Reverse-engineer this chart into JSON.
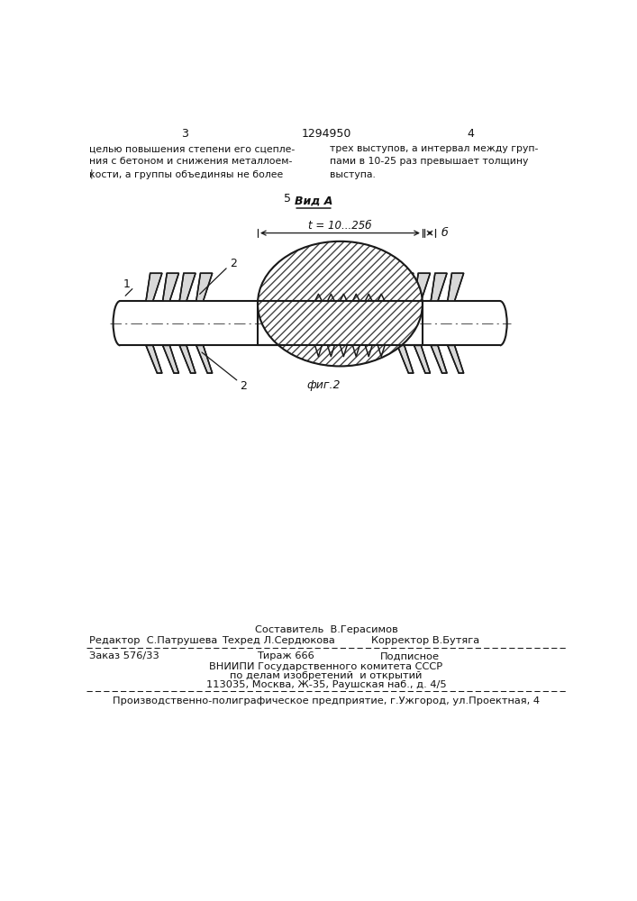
{
  "bg_color": "#ffffff",
  "line_color": "#1a1a1a",
  "page_num_left": "3",
  "page_num_center": "1294950",
  "page_num_right": "4",
  "text_left_col": "целью повышения степени его сцепле-\nния с бетоном и снижения металлоем-\nкости, а группы объединяы не более",
  "text_right_col": "трех выступов, а интервал между груп-\nпами в 10-25 раз превышает толщину\nвыступа.",
  "fig_num": "5",
  "view_label": "Вид А",
  "dim_label": "t = 10...25б",
  "dim_b_label": "б",
  "label_1": "1",
  "label_2_top": "2",
  "label_2_bottom": "2",
  "fig_caption": "фиг.2",
  "footer_sestavitel": "Составитель  В.Герасимов",
  "footer_redaktor": "Редактор  С.Патрушева",
  "footer_tehred": "Техред Л.Сердюкова",
  "footer_korrektor": "Корректор В.Бутяга",
  "footer_zakaz": "Заказ 576/33",
  "footer_tirazh": "Тираж 666",
  "footer_podpisnoe": "Подписное",
  "footer_vniip1": "ВНИИПИ Государственного комитета СССР",
  "footer_vniip2": "по делам изобретений  и открытий",
  "footer_vniip3": "113035, Москва, Ж-35, Раушская наб., д. 4/5",
  "footer_proizv": "Производственно-полиграфическое предприятие, г.Ужгород, ул.Проектная, 4"
}
